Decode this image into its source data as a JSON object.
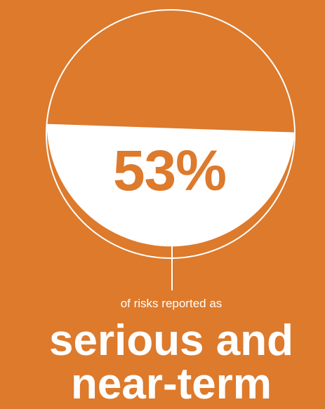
{
  "colors": {
    "background": "#dd7a2c",
    "fill": "#ffffff",
    "accent_text": "#dd7a2c"
  },
  "chart_data": {
    "type": "pie",
    "style": "fill-level circle",
    "values": [
      53
    ],
    "unit": "%",
    "value_label": "53%"
  },
  "caption": {
    "small": "of risks reported as",
    "big_line1": "serious and",
    "big_line2": "near-term"
  }
}
